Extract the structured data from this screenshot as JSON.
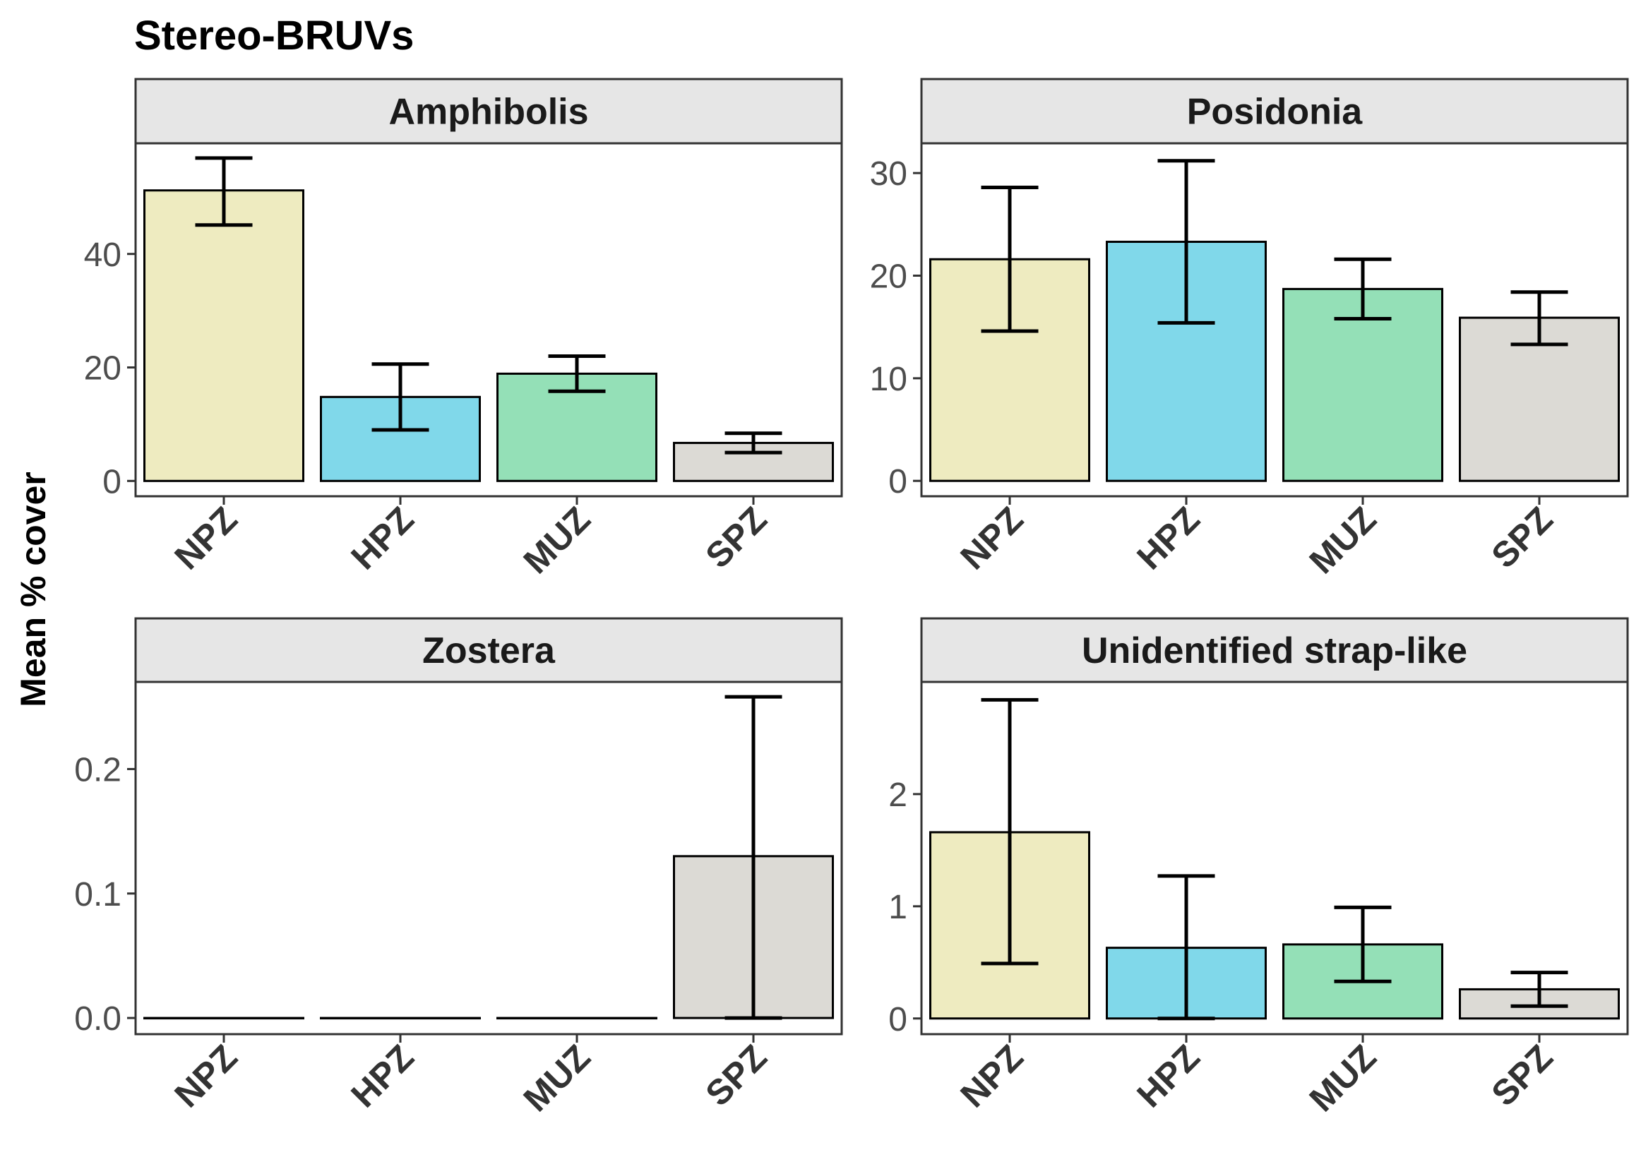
{
  "chart_data": {
    "type": "bar",
    "title": "Stereo-BRUVs",
    "ylabel": "Mean % cover",
    "xlabel": "",
    "categories": [
      "NPZ",
      "HPZ",
      "MUZ",
      "SPZ"
    ],
    "colors": {
      "NPZ": "#eeebc0",
      "HPZ": "#80d8ea",
      "MUZ": "#94e0b7",
      "SPZ": "#dcdad5"
    },
    "facet_strip_color": "#e6e6e6",
    "grid": false,
    "legend": "none",
    "panels": [
      {
        "name": "Amphibolis",
        "ylim": [
          -2.7,
          59.5
        ],
        "yticks": [
          0,
          20,
          40
        ],
        "values": [
          51.2,
          14.8,
          18.9,
          6.7
        ],
        "err_low": [
          45.1,
          9.0,
          15.8,
          5.0
        ],
        "err_high": [
          56.9,
          20.6,
          22.0,
          8.4
        ]
      },
      {
        "name": "Posidonia",
        "ylim": [
          -1.5,
          32.9
        ],
        "yticks": [
          0,
          10,
          20,
          30
        ],
        "values": [
          21.6,
          23.3,
          18.7,
          15.9
        ],
        "err_low": [
          14.6,
          15.4,
          15.8,
          13.3
        ],
        "err_high": [
          28.6,
          31.2,
          21.6,
          18.4
        ]
      },
      {
        "name": "Zostera",
        "ylim": [
          -0.013,
          0.27
        ],
        "yticks": [
          0.0,
          0.1,
          0.2
        ],
        "values": [
          0.0,
          0.0,
          0.0,
          0.13
        ],
        "err_low": [
          0.0,
          0.0,
          0.0,
          0.0
        ],
        "err_high": [
          0.0,
          0.0,
          0.0,
          0.258
        ]
      },
      {
        "name": "Unidentified strap-like",
        "ylim": [
          -0.14,
          3.0
        ],
        "yticks": [
          0,
          1,
          2
        ],
        "values": [
          1.66,
          0.63,
          0.66,
          0.26
        ],
        "err_low": [
          0.49,
          0.0,
          0.33,
          0.11
        ],
        "err_high": [
          2.84,
          1.27,
          0.99,
          0.41
        ]
      }
    ]
  }
}
